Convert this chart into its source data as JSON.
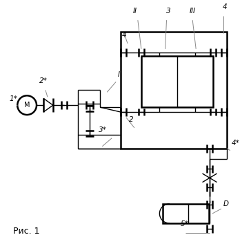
{
  "bg_color": "#ffffff",
  "line_color": "#000000",
  "fig_caption": "Рис. 1",
  "labels": {
    "1star": "1*",
    "2star": "2*",
    "3star": "3*",
    "4star": "4*",
    "5star": "5*",
    "I": "I",
    "II": "II",
    "III": "III",
    "num2": "2",
    "num3": "3",
    "num4_tl": "4",
    "num4_tr": "4",
    "D": "D",
    "M": "М"
  },
  "figsize": [
    3.64,
    3.53
  ],
  "dpi": 100
}
